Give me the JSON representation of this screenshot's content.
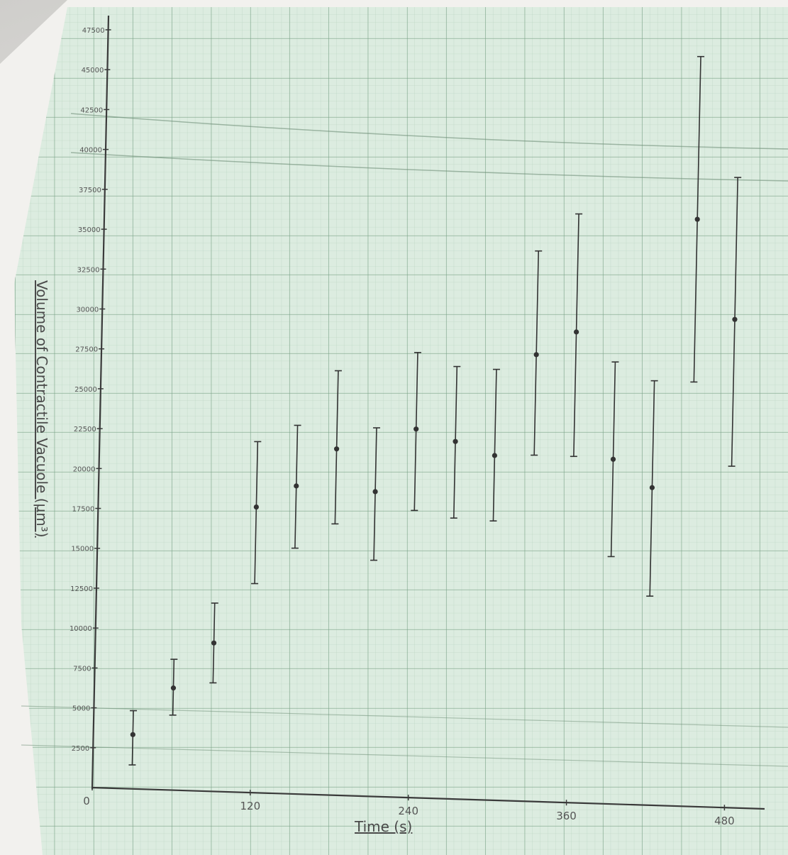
{
  "chart_data": {
    "type": "scatter",
    "error_bars": true,
    "xlabel": "Time (s)",
    "ylabel": "Volume of Contractile Vacuole (µm³)",
    "xlim": [
      0,
      480
    ],
    "ylim": [
      0,
      47500
    ],
    "x_ticks": [
      {
        "value": 0,
        "label": "0"
      },
      {
        "value": 120,
        "label": "120"
      },
      {
        "value": 240,
        "label": "240"
      },
      {
        "value": 360,
        "label": "360"
      },
      {
        "value": 480,
        "label": "480"
      }
    ],
    "y_ticks": [
      {
        "value": 2500,
        "label": "2500"
      },
      {
        "value": 5000,
        "label": "5000"
      },
      {
        "value": 7500,
        "label": "7500"
      },
      {
        "value": 10000,
        "label": "10000"
      },
      {
        "value": 12500,
        "label": "12500"
      },
      {
        "value": 15000,
        "label": "15000"
      },
      {
        "value": 17500,
        "label": "17500"
      },
      {
        "value": 20000,
        "label": "20000"
      },
      {
        "value": 22500,
        "label": "22500"
      },
      {
        "value": 25000,
        "label": "25000"
      },
      {
        "value": 27500,
        "label": "27500"
      },
      {
        "value": 30000,
        "label": "30000"
      },
      {
        "value": 32500,
        "label": "32500"
      },
      {
        "value": 35000,
        "label": "35000"
      },
      {
        "value": 37500,
        "label": "37500"
      },
      {
        "value": 40000,
        "label": "40000"
      },
      {
        "value": 42500,
        "label": "42500"
      },
      {
        "value": 45000,
        "label": "45000"
      },
      {
        "value": 47500,
        "label": "47500"
      }
    ],
    "grid": true,
    "points": [
      {
        "x": 30,
        "y": 3400,
        "low": 1500,
        "high": 4900
      },
      {
        "x": 60,
        "y": 6400,
        "low": 4700,
        "high": 8200
      },
      {
        "x": 90,
        "y": 9300,
        "low": 6800,
        "high": 11800
      },
      {
        "x": 120,
        "y": 17900,
        "low": 13100,
        "high": 22000
      },
      {
        "x": 150,
        "y": 19300,
        "low": 15400,
        "high": 23100
      },
      {
        "x": 180,
        "y": 21700,
        "low": 17000,
        "high": 26600
      },
      {
        "x": 210,
        "y": 19100,
        "low": 14800,
        "high": 23100
      },
      {
        "x": 240,
        "y": 23100,
        "low": 18000,
        "high": 27900
      },
      {
        "x": 270,
        "y": 22400,
        "low": 17600,
        "high": 27100
      },
      {
        "x": 300,
        "y": 21600,
        "low": 17500,
        "high": 27000
      },
      {
        "x": 330,
        "y": 28000,
        "low": 21700,
        "high": 34500
      },
      {
        "x": 360,
        "y": 29500,
        "low": 21700,
        "high": 36900
      },
      {
        "x": 390,
        "y": 21600,
        "low": 15500,
        "high": 27700
      },
      {
        "x": 420,
        "y": 19900,
        "low": 13100,
        "high": 26600
      },
      {
        "x": 450,
        "y": 36800,
        "low": 26600,
        "high": 47000
      },
      {
        "x": 480,
        "y": 30600,
        "low": 21400,
        "high": 39500
      }
    ],
    "colors": {
      "paper": "#dfeee3",
      "grid_major": "#6e9a7c",
      "grid_minor": "#a9c7b1",
      "ink": "#3b3b3b"
    }
  }
}
